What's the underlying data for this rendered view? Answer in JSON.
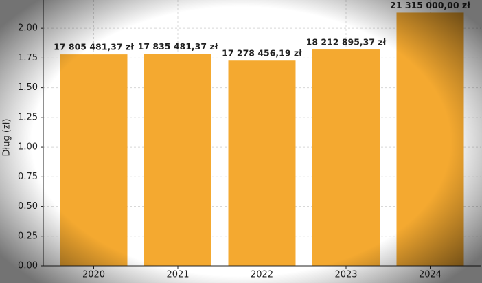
{
  "chart_data": {
    "type": "bar",
    "y_label": "Dług (zł)",
    "categories": [
      "2020",
      "2021",
      "2022",
      "2023",
      "2024"
    ],
    "values": [
      1.780548137,
      1.783548137,
      1.727845619,
      1.821289537,
      2.1315
    ],
    "value_labels": [
      "17 805 481,37 zł",
      "17 835 481,37 zł",
      "17 278 456,19 zł",
      "18 212 895,37 zł",
      "21 315 000,00 zł"
    ],
    "color": "#f4a930",
    "ylim": [
      0,
      2.238
    ],
    "yticks": [
      {
        "value": 0,
        "label": "0.00"
      },
      0.25,
      {
        "value": 0.5,
        "label": "0.50"
      },
      0.75,
      {
        "value": 1,
        "label": "1.00"
      },
      1.25,
      {
        "value": 1.5,
        "label": "1.50"
      },
      1.75,
      {
        "value": 2,
        "label": "2.00"
      }
    ],
    "grid": true
  }
}
